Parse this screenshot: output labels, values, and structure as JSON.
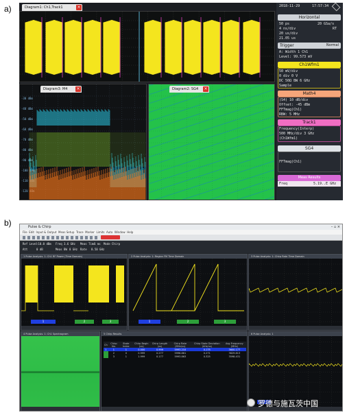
{
  "labels": {
    "a": "a)",
    "b": "b)"
  },
  "panel_a": {
    "datetime": {
      "date": "2018-11-29",
      "time": "17:57:34"
    },
    "wave_tab": "Diagram1: Ch1,Track1",
    "spec_tab": "Diagram3: M4",
    "spectro_tab": "Diagram2: SG4",
    "spec_y_ticks": [
      "-30 dBm",
      "-40 dBm",
      "-50 dBm",
      "-60 dBm",
      "-70 dBm",
      "-80 dBm",
      "-90 dBm",
      "-100 dBm",
      "-110 dBm",
      "-120 dBm"
    ],
    "horizontal": {
      "title": "Horizontal",
      "rows": [
        [
          "50 ps",
          "20 GSa/s"
        ],
        [
          "4 ns/div",
          "RT"
        ],
        [
          "20 us/div",
          ""
        ],
        [
          "21.05 us",
          ""
        ]
      ]
    },
    "trigger": {
      "title": "Trigger",
      "mode": "Normal",
      "rows": [
        "A: Width 1 Ch1",
        "Level: 99.573 mV"
      ]
    },
    "ch1": {
      "title": "Ch1Wfm1",
      "rows": [
        "50 mV/div",
        "0 div          0 V",
        "DC 50Ω     BW 6 GHz",
        "Sample"
      ]
    },
    "math4": {
      "title": "Math4",
      "rows": [
        "(S4)  10 dB/div",
        "Offset: -45 dBm",
        "FFTmag(Ch1)",
        "RBW:  5 MHz"
      ]
    },
    "track1": {
      "title": "Track1",
      "rows": [
        "Frequency(Interp)",
        "500 MHz/div  3 GHz",
        "(Ch1Wfm1)"
      ]
    },
    "sg4": {
      "title": "SG4",
      "rows": [
        "FFTmag(Ch1)"
      ]
    },
    "meas": {
      "title": "Meas Results",
      "label": "Freq",
      "value": "5.19..E GHz"
    }
  },
  "panel_b": {
    "window_title": "Pulse & Chirp",
    "menu": [
      "File",
      "Edit",
      "Input & Output",
      "Meas Setup",
      "Trace",
      "Marker",
      "Limits",
      "Auto",
      "Window",
      "Help"
    ],
    "setup": [
      [
        "Ref Level",
        "-10.0 dBm"
      ],
      [
        "Freq",
        "3.6 GHz"
      ],
      [
        "Meas Time",
        "1 ms"
      ],
      [
        "Mode",
        "Chirp"
      ],
      [
        "Att",
        "0 dB"
      ],
      [
        "Meas BW",
        "8 GHz"
      ],
      [
        "Rate",
        "8.50 GHz"
      ]
    ],
    "windows": [
      "1 Pulse Analysis: 1: Ch1 RF Power (Time Domain)",
      "2 Pulse Analysis: 1: Region FM Time Domain",
      "3 Pulse Analysis: 1: Chirp Rate Time Domain",
      "4 Pulse Analysis: 1: Ch1 Spectrogram",
      "5 Chirp Results",
      "6 Pulse Analysis: 1"
    ],
    "chirp_table": {
      "headers": [
        "Ch",
        "Chirp No.",
        "State Index",
        "Chirp Begin (us)",
        "Chirp Length (us)",
        "Chirp Rate (MHz/us)",
        "Chirp State Deviation (kHz/us)",
        "Avg Frequency (MHz)"
      ],
      "rows": [
        [
          "1",
          "1",
          "1",
          "0.000",
          "0.999",
          "5993.210",
          "0.175",
          "3600.177"
        ],
        [
          "",
          "2",
          "0",
          "0.999",
          "0.277",
          "5996.861",
          "0.271",
          "3629.813"
        ],
        [
          "",
          "3",
          "1",
          "1.999",
          "0.177",
          "5993.863",
          "0.325",
          "3598.431"
        ]
      ]
    }
  },
  "watermark": "罗德与施瓦茨中国",
  "colors": {
    "yellow": "#f4e51e",
    "cyan": "#2fe0ff",
    "green_map": "#24c24a",
    "blue_marker": "#1f3fe0",
    "green_marker": "#2d9f3a"
  }
}
